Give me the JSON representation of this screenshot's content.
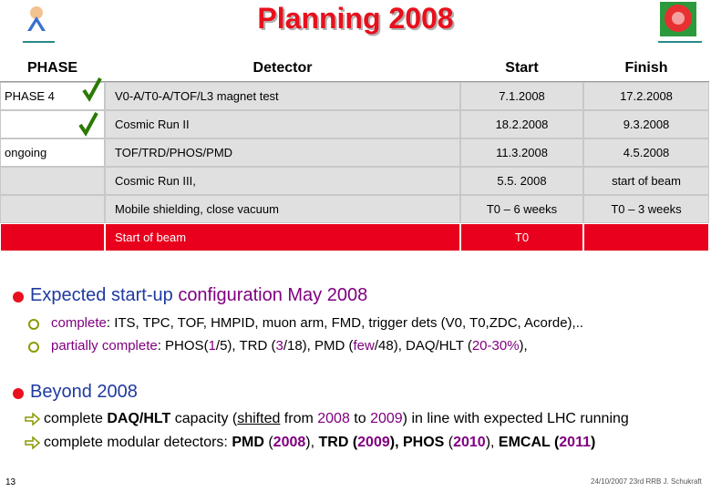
{
  "header": {
    "title": "Planning 2008"
  },
  "table": {
    "columns": [
      "PHASE",
      "Detector",
      "Start",
      "Finish"
    ],
    "rows": [
      [
        "PHASE 4",
        "V0-A/T0-A/TOF/L3 magnet test",
        "7.1.2008",
        "17.2.2008"
      ],
      [
        null,
        "Cosmic Run II",
        "18.2.2008",
        "9.3.2008"
      ],
      [
        "ongoing",
        "TOF/TRD/PHOS/PMD",
        "11.3.2008",
        "4.5.2008"
      ],
      [
        null,
        "Cosmic Run III,",
        "5.5. 2008",
        "start of beam"
      ],
      [
        null,
        "Mobile shielding, close vacuum",
        "T0 – 6 weeks",
        "T0 – 3 weeks"
      ],
      [
        null,
        "Start of beam",
        "T0",
        null
      ]
    ]
  },
  "bullets": [
    {
      "parts": [
        "Expected start-up ",
        "configuration May 2008"
      ],
      "items": [
        [
          "complete",
          ": ITS, TPC, TOF, HMPID, muon arm, FMD, trigger dets (V0, T0,ZDC, Acorde),.."
        ],
        [
          "partially complete",
          ": PHOS(",
          "1",
          "/5), TRD (",
          "3",
          "/18), PMD (",
          "few",
          "/48), DAQ/HLT (",
          "20-30%",
          "),"
        ]
      ]
    },
    {
      "parts": [
        "Beyond 2008"
      ],
      "items": [
        [
          "complete ",
          "DAQ/HLT",
          " capacity (",
          "shifted",
          " from ",
          "2008",
          " to ",
          "2009",
          ") in line with expected LHC running"
        ],
        [
          "complete modular detectors: ",
          "PMD",
          " (",
          "2008",
          "), ",
          "TRD",
          " (",
          "2009",
          "), ",
          "PHOS",
          " (",
          "2010",
          "), ",
          "EMCAL",
          " (",
          "2011",
          ")"
        ]
      ]
    }
  ],
  "footer": {
    "page_number": "13",
    "note": "24/10/2007 23rd RRB J. Schukraft"
  }
}
